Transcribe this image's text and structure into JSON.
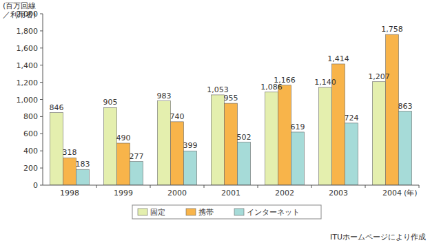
{
  "chart_data": {
    "type": "bar",
    "ylabel": [
      "(百万回線",
      "／利用者)"
    ],
    "xlabel": "(年)",
    "annotation": "ITUホームページにより作成",
    "categories": [
      "1998",
      "1999",
      "2000",
      "2001",
      "2002",
      "2003",
      "2004"
    ],
    "series": [
      {
        "name": "固定",
        "color": "#e4efae",
        "values": [
          846,
          905,
          983,
          1053,
          1086,
          1140,
          1207
        ],
        "value_labels": [
          "846",
          "905",
          "983",
          "1,053",
          "1,086",
          "1,140",
          "1,207"
        ]
      },
      {
        "name": "携帯",
        "color": "#f8b44a",
        "values": [
          318,
          490,
          740,
          955,
          1166,
          1414,
          1758
        ],
        "value_labels": [
          "318",
          "490",
          "740",
          "955",
          "1,166",
          "1,414",
          "1,758"
        ]
      },
      {
        "name": "インターネット",
        "color": "#a6dbd8",
        "values": [
          183,
          277,
          399,
          502,
          619,
          724,
          863
        ],
        "value_labels": [
          "183",
          "277",
          "399",
          "502",
          "619",
          "724",
          "863"
        ]
      }
    ],
    "ylim": [
      0,
      2000
    ],
    "yticks": [
      0,
      200,
      400,
      600,
      800,
      {
        "value": 1000,
        "label": "1,000"
      },
      {
        "value": 1200,
        "label": "1,200"
      },
      {
        "value": 1400,
        "label": "1,400"
      },
      {
        "value": 1600,
        "label": "1,600"
      },
      {
        "value": 1800,
        "label": "1,800"
      },
      {
        "value": 2000,
        "label": "2,000"
      }
    ],
    "grid": false,
    "data_labels": true,
    "legend": "bottom"
  }
}
